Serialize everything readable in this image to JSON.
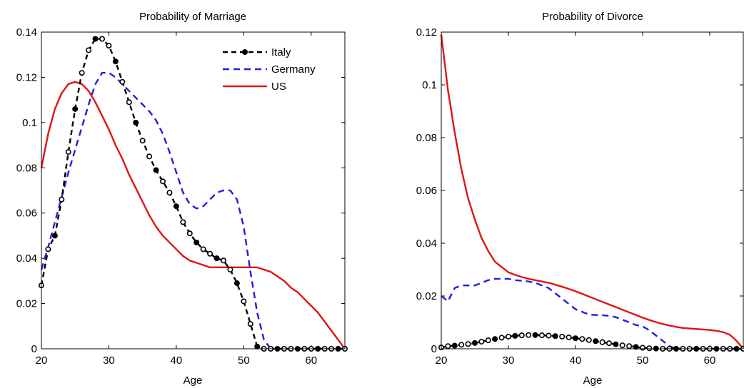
{
  "colors": {
    "italy": "#000000",
    "germany": "#1f1fe0",
    "us": "#e01414"
  },
  "chart_data": [
    {
      "type": "line",
      "title": "Probability of Marriage",
      "xlabel": "Age",
      "ylabel": "",
      "xlim": [
        20,
        65
      ],
      "ylim": [
        0,
        0.14
      ],
      "xticks": [
        20,
        30,
        40,
        50,
        60
      ],
      "xtick_labels": [
        "20",
        "30",
        "40",
        "50",
        "60"
      ],
      "yticks": [
        0,
        0.02,
        0.04,
        0.06,
        0.08,
        0.1,
        0.12,
        0.14
      ],
      "ytick_labels": [
        "0",
        "0.02",
        "0.04",
        "0.06",
        "0.08",
        "0.1",
        "0.12",
        "0.14"
      ],
      "legend": {
        "position": "top-right",
        "entries": [
          "Italy",
          "Germany",
          "US"
        ]
      },
      "series": [
        {
          "name": "Italy",
          "style": "black-dashed-circles",
          "x": [
            20,
            21,
            22,
            23,
            24,
            25,
            26,
            27,
            28,
            29,
            30,
            31,
            32,
            33,
            34,
            35,
            36,
            37,
            38,
            39,
            40,
            41,
            42,
            43,
            44,
            45,
            46,
            47,
            48,
            49,
            50,
            51,
            52,
            53,
            54,
            55,
            56,
            57,
            58,
            59,
            60,
            61,
            62,
            63,
            64,
            65
          ],
          "y": [
            0.028,
            0.044,
            0.05,
            0.066,
            0.087,
            0.106,
            0.122,
            0.132,
            0.137,
            0.137,
            0.134,
            0.127,
            0.118,
            0.109,
            0.1,
            0.092,
            0.085,
            0.079,
            0.074,
            0.069,
            0.063,
            0.056,
            0.051,
            0.047,
            0.044,
            0.042,
            0.04,
            0.039,
            0.035,
            0.029,
            0.021,
            0.011,
            0.001,
            0,
            0,
            0,
            0,
            0,
            0,
            0,
            0,
            0,
            0,
            0,
            0,
            0
          ]
        },
        {
          "name": "Germany",
          "style": "blue-dashed",
          "x": [
            20,
            21,
            22,
            23,
            24,
            25,
            26,
            27,
            28,
            29,
            30,
            31,
            32,
            33,
            34,
            35,
            36,
            37,
            38,
            39,
            40,
            41,
            42,
            43,
            44,
            45,
            46,
            47,
            48,
            49,
            50,
            51,
            52,
            53,
            54,
            55,
            56,
            57,
            58,
            59,
            60,
            61,
            62,
            63,
            64,
            65
          ],
          "y": [
            0.035,
            0.045,
            0.056,
            0.067,
            0.078,
            0.088,
            0.098,
            0.108,
            0.117,
            0.122,
            0.122,
            0.12,
            0.117,
            0.114,
            0.111,
            0.108,
            0.105,
            0.101,
            0.095,
            0.087,
            0.078,
            0.069,
            0.064,
            0.062,
            0.063,
            0.066,
            0.069,
            0.07,
            0.07,
            0.066,
            0.054,
            0.034,
            0.016,
            0.004,
            0,
            0,
            0,
            0,
            0,
            0,
            0,
            0,
            0,
            0,
            0,
            0
          ]
        },
        {
          "name": "US",
          "style": "red-solid",
          "x": [
            20,
            21,
            22,
            23,
            24,
            25,
            26,
            27,
            28,
            29,
            30,
            31,
            32,
            33,
            34,
            35,
            36,
            37,
            38,
            39,
            40,
            41,
            42,
            43,
            44,
            45,
            46,
            47,
            48,
            49,
            50,
            51,
            52,
            53,
            54,
            55,
            56,
            57,
            58,
            59,
            60,
            61,
            62,
            63,
            64,
            65
          ],
          "y": [
            0.08,
            0.095,
            0.106,
            0.113,
            0.117,
            0.118,
            0.117,
            0.114,
            0.109,
            0.103,
            0.097,
            0.09,
            0.084,
            0.077,
            0.071,
            0.065,
            0.059,
            0.054,
            0.05,
            0.047,
            0.044,
            0.041,
            0.039,
            0.038,
            0.037,
            0.036,
            0.036,
            0.036,
            0.036,
            0.036,
            0.036,
            0.036,
            0.036,
            0.035,
            0.034,
            0.032,
            0.03,
            0.027,
            0.025,
            0.022,
            0.019,
            0.016,
            0.012,
            0.008,
            0.004,
            0.0
          ]
        }
      ]
    },
    {
      "type": "line",
      "title": "Probability of Divorce",
      "xlabel": "Age",
      "ylabel": "",
      "xlim": [
        20,
        65
      ],
      "ylim": [
        0,
        0.12
      ],
      "xticks": [
        20,
        30,
        40,
        50,
        60
      ],
      "xtick_labels": [
        "20",
        "30",
        "40",
        "50",
        "60"
      ],
      "yticks": [
        0,
        0.02,
        0.04,
        0.06,
        0.08,
        0.1,
        0.12
      ],
      "ytick_labels": [
        "0",
        "0.02",
        "0.04",
        "0.06",
        "0.08",
        "0.1",
        "0.12"
      ],
      "series": [
        {
          "name": "Italy",
          "style": "black-dashed-circles",
          "x": [
            20,
            21,
            22,
            23,
            24,
            25,
            26,
            27,
            28,
            29,
            30,
            31,
            32,
            33,
            34,
            35,
            36,
            37,
            38,
            39,
            40,
            41,
            42,
            43,
            44,
            45,
            46,
            47,
            48,
            49,
            50,
            51,
            52,
            53,
            54,
            55,
            56,
            57,
            58,
            59,
            60,
            61,
            62,
            63,
            64,
            65
          ],
          "y": [
            0.0005,
            0.001,
            0.0012,
            0.0015,
            0.0018,
            0.0022,
            0.0027,
            0.0032,
            0.0037,
            0.0042,
            0.0046,
            0.0049,
            0.0051,
            0.0052,
            0.0052,
            0.0051,
            0.005,
            0.0048,
            0.0046,
            0.0043,
            0.004,
            0.0037,
            0.0033,
            0.0029,
            0.0025,
            0.0021,
            0.0017,
            0.0013,
            0.001,
            0.0007,
            0.0004,
            0.0002,
            0.0001,
            0,
            0,
            0,
            0,
            0,
            0,
            0,
            0,
            0,
            0,
            0,
            0,
            0
          ]
        },
        {
          "name": "Germany",
          "style": "blue-dashed",
          "x": [
            20,
            21,
            22,
            23,
            24,
            25,
            26,
            27,
            28,
            29,
            30,
            31,
            32,
            33,
            34,
            35,
            36,
            37,
            38,
            39,
            40,
            41,
            42,
            43,
            44,
            45,
            46,
            47,
            48,
            49,
            50,
            51,
            52,
            53,
            54,
            55,
            56,
            57,
            58,
            59,
            60,
            61,
            62,
            63,
            64,
            65
          ],
          "y": [
            0.02,
            0.018,
            0.023,
            0.024,
            0.024,
            0.024,
            0.025,
            0.026,
            0.0265,
            0.0265,
            0.0265,
            0.026,
            0.0258,
            0.0255,
            0.025,
            0.024,
            0.023,
            0.021,
            0.019,
            0.017,
            0.015,
            0.014,
            0.013,
            0.0128,
            0.0127,
            0.0125,
            0.012,
            0.011,
            0.01,
            0.009,
            0.0085,
            0.007,
            0.005,
            0.003,
            0.001,
            0,
            0,
            0,
            0,
            0,
            0,
            0,
            0,
            0,
            0,
            0
          ]
        },
        {
          "name": "US",
          "style": "red-solid",
          "x": [
            20,
            21,
            22,
            23,
            24,
            25,
            26,
            27,
            28,
            29,
            30,
            31,
            32,
            33,
            34,
            35,
            36,
            37,
            38,
            39,
            40,
            41,
            42,
            43,
            44,
            45,
            46,
            47,
            48,
            49,
            50,
            51,
            52,
            53,
            54,
            55,
            56,
            57,
            58,
            59,
            60,
            61,
            62,
            63,
            64,
            65
          ],
          "y": [
            0.119,
            0.098,
            0.082,
            0.068,
            0.057,
            0.049,
            0.042,
            0.037,
            0.033,
            0.031,
            0.029,
            0.028,
            0.0272,
            0.0265,
            0.026,
            0.0255,
            0.025,
            0.0243,
            0.0235,
            0.0227,
            0.0218,
            0.0208,
            0.0198,
            0.0188,
            0.0178,
            0.0168,
            0.0158,
            0.0148,
            0.0138,
            0.0128,
            0.0118,
            0.0109,
            0.0101,
            0.0094,
            0.0088,
            0.0083,
            0.0079,
            0.0077,
            0.0075,
            0.0073,
            0.0071,
            0.0068,
            0.0063,
            0.0053,
            0.003,
            0.0
          ]
        }
      ]
    }
  ]
}
